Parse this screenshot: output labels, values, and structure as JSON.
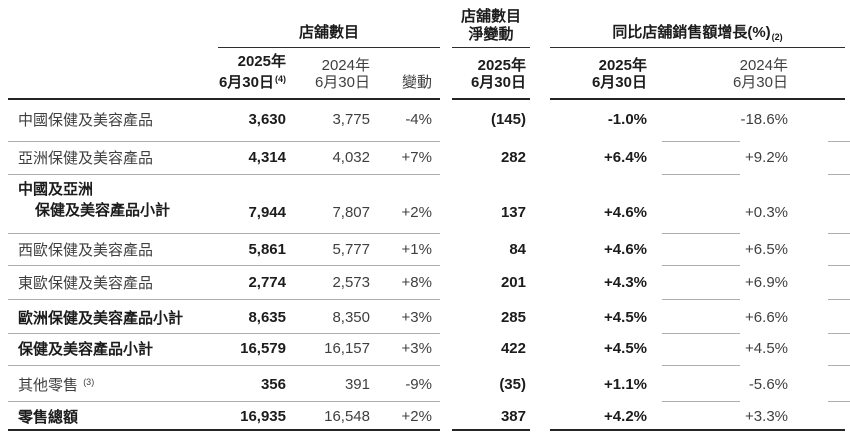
{
  "table": {
    "header": {
      "stores_group": "店舖數目",
      "net_change_group_line1": "店舖數目",
      "net_change_group_line2": "淨變動",
      "sss_group": "同比店舖銷售額增長(%)",
      "sss_group_sup": "(2)",
      "col_stores_2025_l1": "2025年",
      "col_stores_2025_l2": "6月30日",
      "col_stores_2025_sup": "(4)",
      "col_stores_2024_l1": "2024年",
      "col_stores_2024_l2": "6月30日",
      "col_change": "變動",
      "col_net_2025_l1": "2025年",
      "col_net_2025_l2": "6月30日",
      "col_sss_2025_l1": "2025年",
      "col_sss_2025_l2": "6月30日",
      "col_sss_2024_l1": "2024年",
      "col_sss_2024_l2": "6月30日"
    },
    "rows": [
      {
        "label": "中國保健及美容產品",
        "stores_2025": "3,630",
        "stores_2024": "3,775",
        "change": "-4%",
        "net_change_2025": "(145)",
        "sss_2025": "-1.0%",
        "sss_2024": "-18.6%"
      },
      {
        "label": "亞洲保健及美容產品",
        "stores_2025": "4,314",
        "stores_2024": "4,032",
        "change": "+7%",
        "net_change_2025": "282",
        "sss_2025": "+6.4%",
        "sss_2024": "+9.2%"
      },
      {
        "label_line1": "中國及亞洲",
        "label_line2": "保健及美容產品小計",
        "stores_2025": "7,944",
        "stores_2024": "7,807",
        "change": "+2%",
        "net_change_2025": "137",
        "sss_2025": "+4.6%",
        "sss_2024": "+0.3%"
      },
      {
        "label": "西歐保健及美容產品",
        "stores_2025": "5,861",
        "stores_2024": "5,777",
        "change": "+1%",
        "net_change_2025": "84",
        "sss_2025": "+4.6%",
        "sss_2024": "+6.5%"
      },
      {
        "label": "東歐保健及美容產品",
        "stores_2025": "2,774",
        "stores_2024": "2,573",
        "change": "+8%",
        "net_change_2025": "201",
        "sss_2025": "+4.3%",
        "sss_2024": "+6.9%"
      },
      {
        "label": "歐洲保健及美容產品小計",
        "stores_2025": "8,635",
        "stores_2024": "8,350",
        "change": "+3%",
        "net_change_2025": "285",
        "sss_2025": "+4.5%",
        "sss_2024": "+6.6%"
      },
      {
        "label": "保健及美容產品小計",
        "stores_2025": "16,579",
        "stores_2024": "16,157",
        "change": "+3%",
        "net_change_2025": "422",
        "sss_2025": "+4.5%",
        "sss_2024": "+4.5%"
      },
      {
        "label": "其他零售",
        "label_sup": "(3)",
        "stores_2025": "356",
        "stores_2024": "391",
        "change": "-9%",
        "net_change_2025": "(35)",
        "sss_2025": "+1.1%",
        "sss_2024": "-5.6%"
      },
      {
        "label": "零售總額",
        "stores_2025": "16,935",
        "stores_2024": "16,548",
        "change": "+2%",
        "net_change_2025": "387",
        "sss_2025": "+4.2%",
        "sss_2024": "+3.3%"
      }
    ],
    "colors": {
      "highlight_row_bg": "#d9d9d9",
      "separator_line": "#aeaeae",
      "dark_line": "#252525",
      "text_regular": "#3f3f3f",
      "text_bold": "#1c1c1c"
    }
  }
}
